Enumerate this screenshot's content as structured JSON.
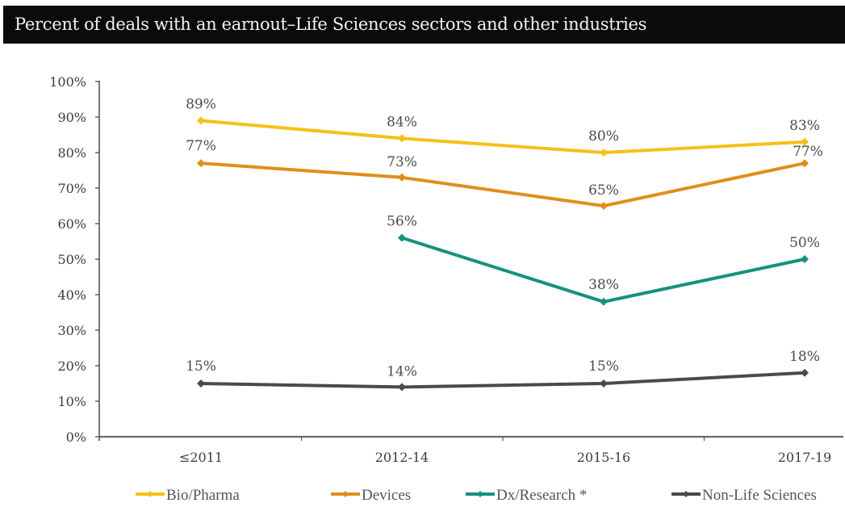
{
  "title": "Percent of deals with an earnout–Life Sciences sectors and other industries",
  "chart_data": {
    "type": "line",
    "title": "Percent of deals with an earnout–Life Sciences sectors and other industries",
    "xlabel": "",
    "ylabel": "",
    "categories": [
      "≤2011",
      "2012-14",
      "2015-16",
      "2017-19"
    ],
    "ylim": [
      0,
      100
    ],
    "yticks": [
      0,
      10,
      20,
      30,
      40,
      50,
      60,
      70,
      80,
      90,
      100
    ],
    "ytick_labels": [
      "0%",
      "10%",
      "20%",
      "30%",
      "40%",
      "50%",
      "60%",
      "70%",
      "80%",
      "90%",
      "100%"
    ],
    "grid": false,
    "legend_position": "bottom",
    "series": [
      {
        "name": "Bio/Pharma",
        "color": "#F5C018",
        "values": [
          89,
          84,
          80,
          83
        ],
        "labels": [
          "89%",
          "84%",
          "80%",
          "83%"
        ]
      },
      {
        "name": "Devices",
        "color": "#E08E1B",
        "values": [
          77,
          73,
          65,
          77
        ],
        "labels": [
          "77%",
          "73%",
          "65%",
          "77%"
        ]
      },
      {
        "name": "Dx/Research*",
        "color": "#17917C",
        "values": [
          null,
          56,
          38,
          50
        ],
        "labels": [
          null,
          "56%",
          "38%",
          "50%"
        ]
      },
      {
        "name": "Non-Life Sciences",
        "color": "#4A4A4A",
        "values": [
          15,
          14,
          15,
          18
        ],
        "labels": [
          "15%",
          "14%",
          "15%",
          "18%"
        ]
      }
    ]
  },
  "legend": [
    {
      "label": "Bio/Pharma",
      "color": "#F5C018"
    },
    {
      "label": "Devices",
      "color": "#E08E1B"
    },
    {
      "label": "Dx/Research *",
      "color": "#17917C"
    },
    {
      "label": "Non-Life Sciences",
      "color": "#4A4A4A"
    }
  ]
}
